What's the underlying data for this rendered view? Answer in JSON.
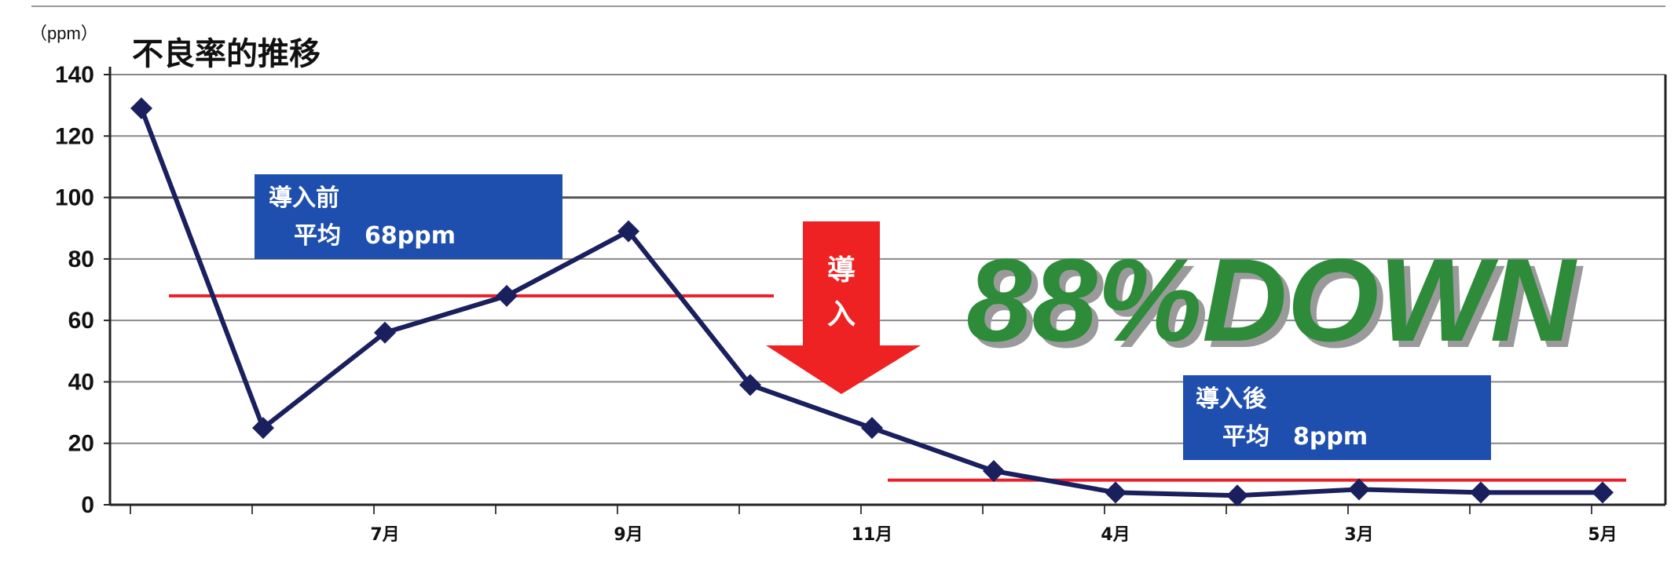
{
  "chart_data": {
    "type": "line",
    "title": "不良率的推移",
    "unit_label": "（ppm）",
    "ylim": [
      0,
      140
    ],
    "y_ticks": [
      0,
      20,
      40,
      60,
      80,
      100,
      120,
      140
    ],
    "x_positions": 13,
    "x_labels": [
      {
        "index": 2,
        "label": "7月"
      },
      {
        "index": 4,
        "label": "9月"
      },
      {
        "index": 6,
        "label": "11月"
      },
      {
        "index": 8,
        "label": "4月"
      },
      {
        "index": 10,
        "label": "3月"
      },
      {
        "index": 12,
        "label": "5月"
      }
    ],
    "values": [
      129,
      25,
      56,
      68,
      89,
      39,
      25,
      11,
      4,
      3,
      5,
      4,
      4
    ],
    "grid": true,
    "line_color": "#1a1f5e",
    "before": {
      "label_line1": "導入前",
      "label_line2": "平均　68ppm",
      "average": 68
    },
    "after": {
      "label_line1": "導入後",
      "label_line2": "平均　8ppm",
      "average": 8
    },
    "arrow": {
      "label_line1": "導",
      "label_line2": "入",
      "color": "#ee2222"
    },
    "headline": "88%DOWN",
    "headline_color": "#2e8b3a",
    "box_color": "#1f4fae",
    "avg_line_color": "#e8202a"
  }
}
